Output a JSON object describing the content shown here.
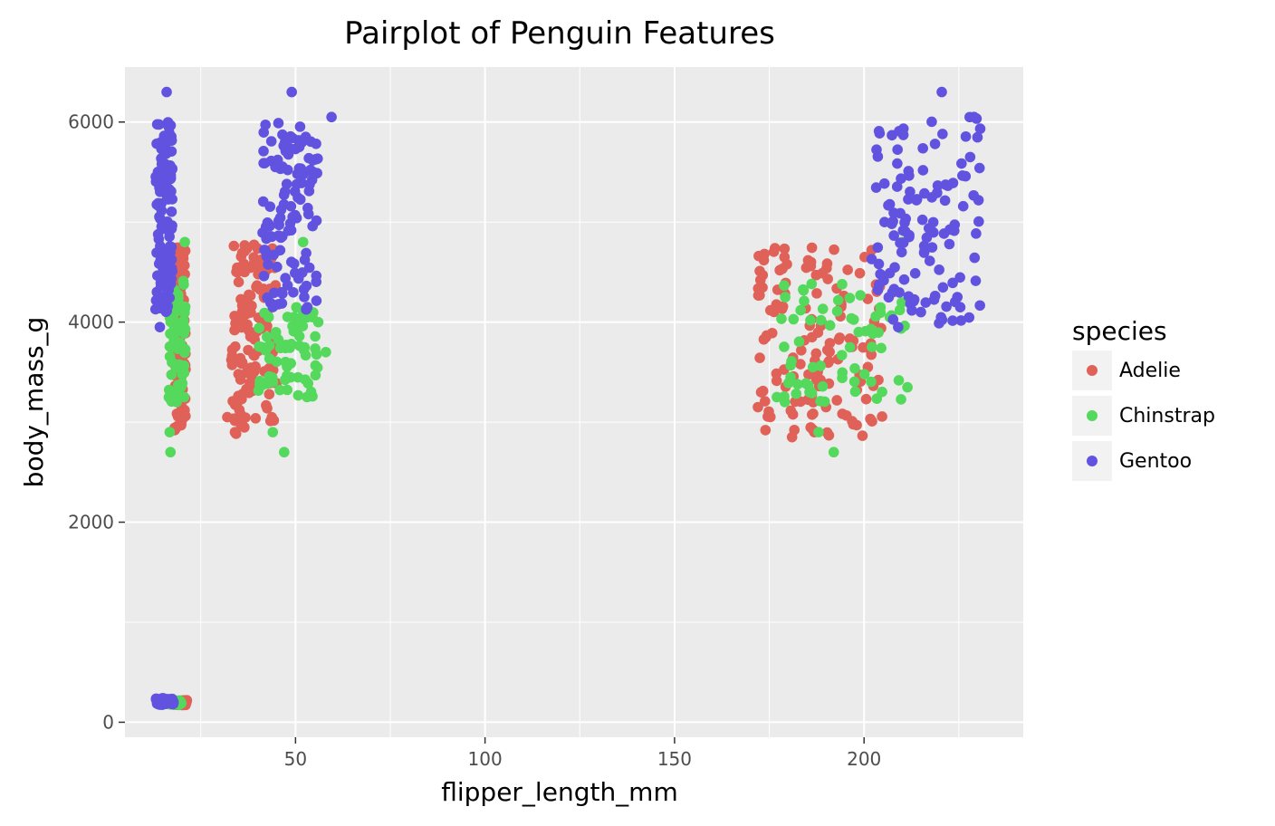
{
  "chart_data": {
    "type": "scatter",
    "title": "Pairplot of Penguin Features",
    "xlabel": "flipper_length_mm",
    "ylabel": "body_mass_g",
    "xlim": [
      5,
      242
    ],
    "ylim": [
      -150,
      6550
    ],
    "x_ticks": [
      50,
      100,
      150,
      200
    ],
    "x_tick_labels": [
      "50",
      "100",
      "150",
      "200"
    ],
    "y_ticks": [
      0,
      2000,
      4000,
      6000
    ],
    "y_tick_labels": [
      "0",
      "2000",
      "4000",
      "6000"
    ],
    "grid": true,
    "legend": {
      "title": "species",
      "position": "right"
    },
    "series": [
      {
        "name": "Adelie",
        "color": "#e06158",
        "clusters": [
          {
            "x_range": [
              18,
              21
            ],
            "y_range": [
              2850,
              4780
            ],
            "n": 110
          },
          {
            "x_range": [
              33,
              45
            ],
            "y_range": [
              2850,
              4780
            ],
            "n": 140
          },
          {
            "x_range": [
              172,
              205
            ],
            "y_range": [
              2850,
              4780
            ],
            "n": 140
          },
          {
            "x_range": [
              17,
              21.5
            ],
            "y_range": [
              170,
              220
            ],
            "n": 50
          }
        ],
        "points": [
          [
            32,
            3050
          ],
          [
            34,
            2900
          ],
          [
            35,
            4400
          ],
          [
            43,
            4700
          ],
          [
            172,
            3150
          ],
          [
            179,
            4650
          ],
          [
            186,
            4600
          ],
          [
            202,
            4720
          ],
          [
            201,
            3550
          ],
          [
            181,
            2850
          ]
        ]
      },
      {
        "name": "Chinstrap",
        "color": "#54d95c",
        "clusters": [
          {
            "x_range": [
              16.5,
              21
            ],
            "y_range": [
              3200,
              4450
            ],
            "n": 70
          },
          {
            "x_range": [
              40,
              56
            ],
            "y_range": [
              3250,
              4150
            ],
            "n": 70
          },
          {
            "x_range": [
              178,
              212
            ],
            "y_range": [
              3200,
              4400
            ],
            "n": 70
          },
          {
            "x_range": [
              16.5,
              20
            ],
            "y_range": [
              170,
              220
            ],
            "n": 30
          }
        ],
        "points": [
          [
            20.8,
            4800
          ],
          [
            17,
            2700
          ],
          [
            16.8,
            2900
          ],
          [
            47,
            2700
          ],
          [
            44,
            2900
          ],
          [
            52,
            4800
          ],
          [
            58,
            3700
          ],
          [
            56,
            4000
          ],
          [
            192,
            2700
          ],
          [
            210,
            4800
          ],
          [
            177,
            3250
          ],
          [
            188,
            2900
          ]
        ]
      },
      {
        "name": "Gentoo",
        "color": "#6153e0",
        "clusters": [
          {
            "x_range": [
              13,
              17.5
            ],
            "y_range": [
              4100,
              6000
            ],
            "n": 120
          },
          {
            "x_range": [
              41,
              56
            ],
            "y_range": [
              4100,
              6000
            ],
            "n": 120
          },
          {
            "x_range": [
              203,
              231
            ],
            "y_range": [
              3950,
              6050
            ],
            "n": 120
          },
          {
            "x_range": [
              13,
              18
            ],
            "y_range": [
              170,
              240
            ],
            "n": 40
          }
        ],
        "points": [
          [
            14.2,
            3950
          ],
          [
            16,
            6300
          ],
          [
            49,
            6300
          ],
          [
            59.5,
            6050
          ],
          [
            220.5,
            6300
          ],
          [
            229,
            6050
          ],
          [
            209,
            3950
          ],
          [
            215,
            4100
          ],
          [
            202,
            4630
          ],
          [
            44,
            4150
          ]
        ]
      }
    ]
  }
}
